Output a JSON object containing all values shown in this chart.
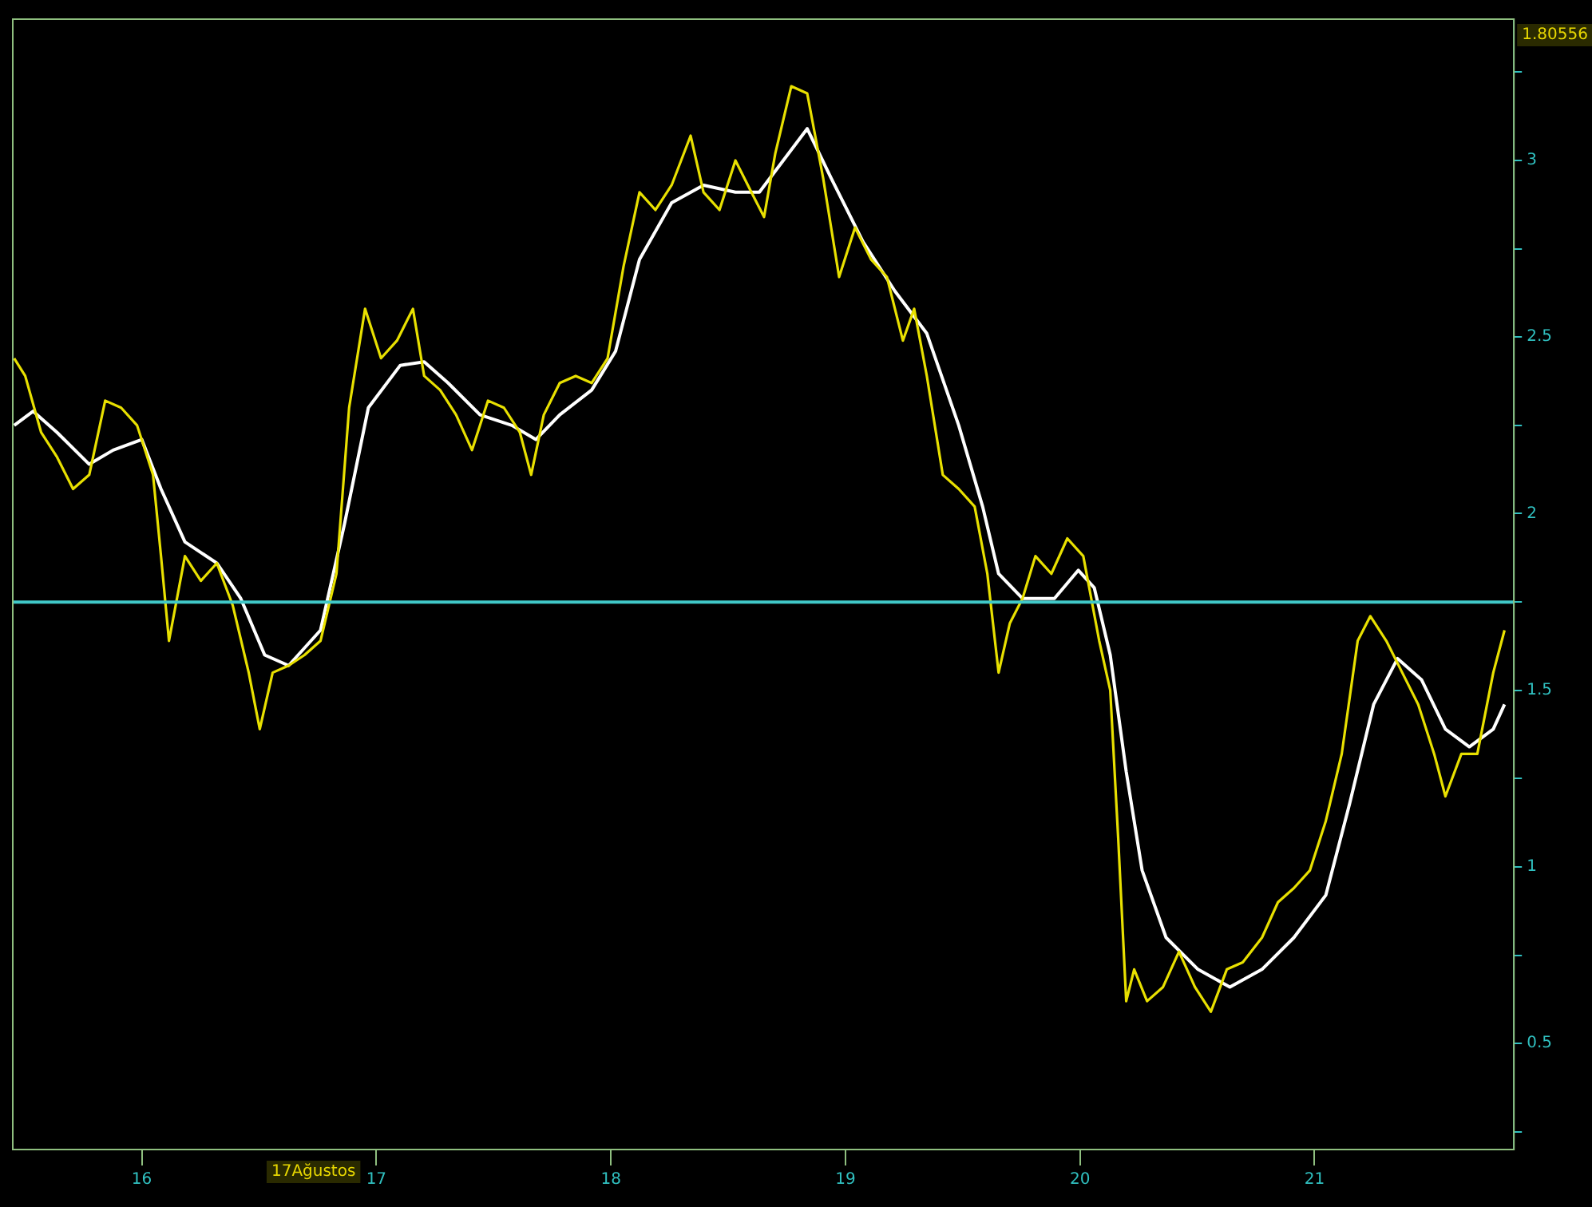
{
  "chart_data": {
    "type": "line",
    "xlim": [
      2015.45,
      2021.85
    ],
    "xticks": [
      {
        "value": 2016,
        "label": "16"
      },
      {
        "value": 2017,
        "label": "17"
      },
      {
        "value": 2018,
        "label": "18"
      },
      {
        "value": 2019,
        "label": "19"
      },
      {
        "value": 2020,
        "label": "20"
      },
      {
        "value": 2021,
        "label": "21"
      }
    ],
    "ylim": [
      0.2,
      3.4
    ],
    "yticks": [
      {
        "value": 0.25,
        "label": null
      },
      {
        "value": 0.5,
        "label": "0.5"
      },
      {
        "value": 0.75,
        "label": null
      },
      {
        "value": 1,
        "label": "1"
      },
      {
        "value": 1.25,
        "label": null
      },
      {
        "value": 1.5,
        "label": "1.5"
      },
      {
        "value": 1.75,
        "label": null
      },
      {
        "value": 2,
        "label": "2"
      },
      {
        "value": 2.25,
        "label": null
      },
      {
        "value": 2.5,
        "label": "2.5"
      },
      {
        "value": 2.75,
        "label": null
      },
      {
        "value": 3,
        "label": "3"
      },
      {
        "value": 3.25,
        "label": null
      }
    ],
    "grid": false,
    "legend": false,
    "marker": "none",
    "ref_lines": [
      {
        "axis": "y",
        "value": 1.75,
        "color": "#40c8c8"
      }
    ],
    "annotations": [
      "1.80556",
      "17Ağustos"
    ],
    "series": [
      {
        "color": "#e8e000",
        "x": [
          2015.456,
          2015.503,
          2015.571,
          2015.639,
          2015.707,
          2015.776,
          2015.844,
          2015.912,
          2015.98,
          2016.048,
          2016.082,
          2016.116,
          2016.184,
          2016.252,
          2016.32,
          2016.388,
          2016.456,
          2016.503,
          2016.558,
          2016.626,
          2016.694,
          2016.762,
          2016.83,
          2016.884,
          2016.952,
          2017.02,
          2017.088,
          2017.156,
          2017.204,
          2017.272,
          2017.34,
          2017.408,
          2017.476,
          2017.544,
          2017.612,
          2017.66,
          2017.714,
          2017.782,
          2017.85,
          2017.918,
          2017.986,
          2018.054,
          2018.122,
          2018.19,
          2018.259,
          2018.34,
          2018.395,
          2018.463,
          2018.531,
          2018.599,
          2018.653,
          2018.701,
          2018.769,
          2018.837,
          2018.905,
          2018.973,
          2019.041,
          2019.109,
          2019.177,
          2019.245,
          2019.293,
          2019.347,
          2019.415,
          2019.483,
          2019.551,
          2019.605,
          2019.653,
          2019.701,
          2019.755,
          2019.81,
          2019.878,
          2019.946,
          2020.014,
          2020.082,
          2020.129,
          2020.163,
          2020.197,
          2020.231,
          2020.286,
          2020.354,
          2020.422,
          2020.49,
          2020.558,
          2020.626,
          2020.694,
          2020.776,
          2020.844,
          2020.912,
          2020.98,
          2021.048,
          2021.116,
          2021.184,
          2021.238,
          2021.306,
          2021.374,
          2021.442,
          2021.51,
          2021.558,
          2021.626,
          2021.694,
          2021.762,
          2021.81
        ],
        "values": [
          2.44,
          2.39,
          2.23,
          2.16,
          2.07,
          2.11,
          2.32,
          2.3,
          2.25,
          2.11,
          1.88,
          1.64,
          1.88,
          1.81,
          1.86,
          1.74,
          1.55,
          1.39,
          1.55,
          1.57,
          1.6,
          1.64,
          1.83,
          2.3,
          2.58,
          2.44,
          2.49,
          2.58,
          2.39,
          2.35,
          2.28,
          2.18,
          2.32,
          2.3,
          2.23,
          2.11,
          2.28,
          2.37,
          2.39,
          2.37,
          2.44,
          2.7,
          2.91,
          2.86,
          2.93,
          3.07,
          2.91,
          2.86,
          3.0,
          2.91,
          2.84,
          3.02,
          3.21,
          3.19,
          2.95,
          2.67,
          2.81,
          2.72,
          2.67,
          2.49,
          2.58,
          2.39,
          2.11,
          2.07,
          2.02,
          1.83,
          1.55,
          1.69,
          1.76,
          1.88,
          1.83,
          1.93,
          1.88,
          1.64,
          1.5,
          1.08,
          0.62,
          0.71,
          0.62,
          0.66,
          0.76,
          0.66,
          0.59,
          0.71,
          0.73,
          0.8,
          0.9,
          0.94,
          0.99,
          1.13,
          1.32,
          1.64,
          1.71,
          1.64,
          1.55,
          1.46,
          1.32,
          1.2,
          1.32,
          1.32,
          1.55,
          1.67
        ]
      },
      {
        "color": "#ffffff",
        "x": [
          2015.456,
          2015.537,
          2015.639,
          2015.776,
          2015.878,
          2016.0,
          2016.082,
          2016.184,
          2016.32,
          2016.422,
          2016.524,
          2016.626,
          2016.762,
          2016.864,
          2016.966,
          2017.102,
          2017.204,
          2017.306,
          2017.442,
          2017.578,
          2017.68,
          2017.782,
          2017.918,
          2018.02,
          2018.122,
          2018.259,
          2018.395,
          2018.531,
          2018.633,
          2018.735,
          2018.837,
          2018.939,
          2019.075,
          2019.211,
          2019.347,
          2019.483,
          2019.585,
          2019.653,
          2019.755,
          2019.891,
          2019.993,
          2020.061,
          2020.129,
          2020.197,
          2020.265,
          2020.367,
          2020.503,
          2020.639,
          2020.776,
          2020.912,
          2021.048,
          2021.15,
          2021.252,
          2021.354,
          2021.456,
          2021.558,
          2021.66,
          2021.762,
          2021.81
        ],
        "values": [
          2.25,
          2.29,
          2.23,
          2.14,
          2.18,
          2.21,
          2.07,
          1.92,
          1.86,
          1.76,
          1.6,
          1.57,
          1.67,
          1.97,
          2.3,
          2.42,
          2.43,
          2.37,
          2.28,
          2.25,
          2.21,
          2.28,
          2.35,
          2.46,
          2.72,
          2.88,
          2.93,
          2.91,
          2.91,
          3.0,
          3.09,
          2.95,
          2.77,
          2.63,
          2.51,
          2.25,
          2.02,
          1.83,
          1.76,
          1.76,
          1.84,
          1.79,
          1.6,
          1.27,
          0.99,
          0.8,
          0.71,
          0.66,
          0.71,
          0.8,
          0.92,
          1.18,
          1.46,
          1.59,
          1.53,
          1.39,
          1.34,
          1.39,
          1.46
        ]
      }
    ]
  }
}
